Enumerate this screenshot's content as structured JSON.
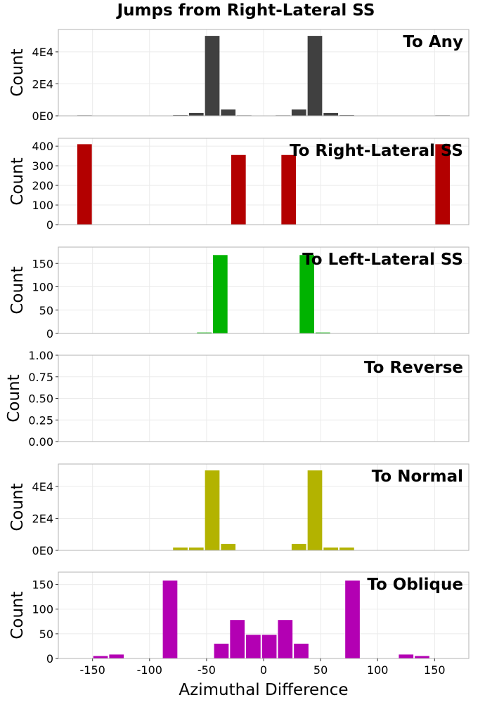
{
  "figure": {
    "title": "Jumps from Right-Lateral SS",
    "xlabel": "Azimuthal Difference",
    "xticks": [
      -150,
      -100,
      -50,
      0,
      50,
      100,
      150
    ],
    "xlim": [
      -180,
      180
    ],
    "bin_width": 14
  },
  "chart_data": [
    {
      "type": "bar",
      "title": "To Any",
      "ylabel": "Count",
      "color": "#404040",
      "ylim": [
        0,
        54000
      ],
      "yticks": [
        0,
        20000,
        40000
      ],
      "ytick_labels": [
        "0E0",
        "2E4",
        "4E4"
      ],
      "bars": [
        {
          "x": -157,
          "y": 300
        },
        {
          "x": -143,
          "y": 150
        },
        {
          "x": -115,
          "y": 100
        },
        {
          "x": -87,
          "y": 100
        },
        {
          "x": -73,
          "y": 400
        },
        {
          "x": -59,
          "y": 1800
        },
        {
          "x": -45,
          "y": 50000
        },
        {
          "x": -31,
          "y": 4000
        },
        {
          "x": -17,
          "y": 300
        },
        {
          "x": -3,
          "y": 100
        },
        {
          "x": 17,
          "y": 300
        },
        {
          "x": 31,
          "y": 4000
        },
        {
          "x": 45,
          "y": 50000
        },
        {
          "x": 59,
          "y": 1800
        },
        {
          "x": 73,
          "y": 400
        },
        {
          "x": 87,
          "y": 100
        },
        {
          "x": 115,
          "y": 100
        },
        {
          "x": 143,
          "y": 150
        },
        {
          "x": 157,
          "y": 300
        }
      ]
    },
    {
      "type": "bar",
      "title": "To Right-Lateral SS",
      "ylabel": "Count",
      "color": "#b30000",
      "ylim": [
        0,
        440
      ],
      "yticks": [
        0,
        100,
        200,
        300,
        400
      ],
      "ytick_labels": [
        "0",
        "100",
        "200",
        "300",
        "400"
      ],
      "bars": [
        {
          "x": -157,
          "y": 410
        },
        {
          "x": -22,
          "y": 355
        },
        {
          "x": 22,
          "y": 355
        },
        {
          "x": 157,
          "y": 410
        }
      ]
    },
    {
      "type": "bar",
      "title": "To Left-Lateral SS",
      "ylabel": "Count",
      "color": "#00b300",
      "ylim": [
        0,
        185
      ],
      "yticks": [
        0,
        50,
        100,
        150
      ],
      "ytick_labels": [
        "0",
        "50",
        "100",
        "150"
      ],
      "bars": [
        {
          "x": -52,
          "y": 2
        },
        {
          "x": -38,
          "y": 168
        },
        {
          "x": 38,
          "y": 168
        },
        {
          "x": 52,
          "y": 2
        }
      ]
    },
    {
      "type": "bar",
      "title": "To Reverse",
      "ylabel": "Count",
      "color": "#0000b3",
      "ylim": [
        0,
        1
      ],
      "yticks": [
        0,
        0.25,
        0.5,
        0.75,
        1
      ],
      "ytick_labels": [
        "0.00",
        "0.25",
        "0.50",
        "0.75",
        "1.00"
      ],
      "bars": []
    },
    {
      "type": "bar",
      "title": "To Normal",
      "ylabel": "Count",
      "color": "#b3b300",
      "ylim": [
        0,
        54000
      ],
      "yticks": [
        0,
        20000,
        40000
      ],
      "ytick_labels": [
        "0E0",
        "2E4",
        "4E4"
      ],
      "bars": [
        {
          "x": -143,
          "y": 150
        },
        {
          "x": -115,
          "y": 100
        },
        {
          "x": -73,
          "y": 1800
        },
        {
          "x": -59,
          "y": 1800
        },
        {
          "x": -45,
          "y": 50000
        },
        {
          "x": -31,
          "y": 4000
        },
        {
          "x": 31,
          "y": 4000
        },
        {
          "x": 45,
          "y": 50000
        },
        {
          "x": 59,
          "y": 1800
        },
        {
          "x": 73,
          "y": 1800
        },
        {
          "x": 115,
          "y": 100
        },
        {
          "x": 143,
          "y": 150
        }
      ]
    },
    {
      "type": "bar",
      "title": "To Oblique",
      "ylabel": "Count",
      "color": "#b300b3",
      "ylim": [
        0,
        175
      ],
      "yticks": [
        0,
        50,
        100,
        150
      ],
      "ytick_labels": [
        "0",
        "50",
        "100",
        "150"
      ],
      "bars": [
        {
          "x": -143,
          "y": 5
        },
        {
          "x": -129,
          "y": 8
        },
        {
          "x": -82,
          "y": 158
        },
        {
          "x": -37,
          "y": 30
        },
        {
          "x": -23,
          "y": 78
        },
        {
          "x": -9,
          "y": 48
        },
        {
          "x": 5,
          "y": 48
        },
        {
          "x": 19,
          "y": 78
        },
        {
          "x": 33,
          "y": 30
        },
        {
          "x": 78,
          "y": 158
        },
        {
          "x": 125,
          "y": 8
        },
        {
          "x": 139,
          "y": 5
        }
      ]
    }
  ]
}
